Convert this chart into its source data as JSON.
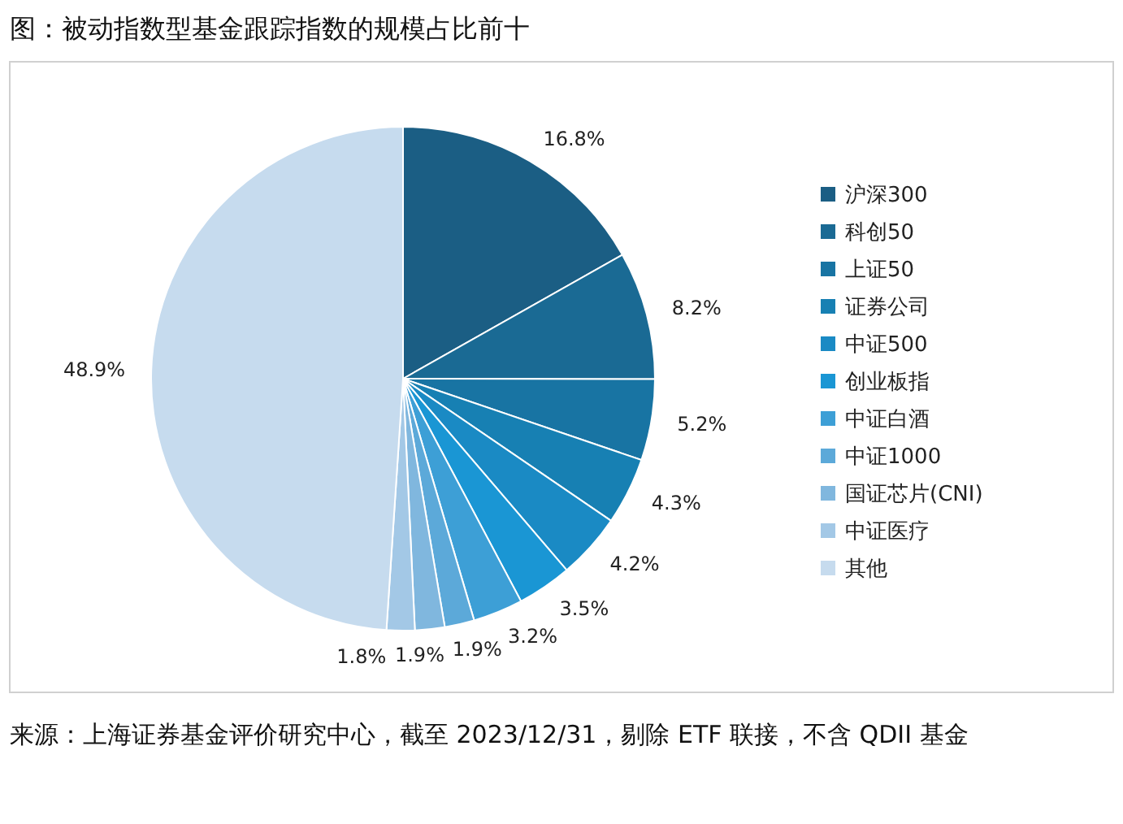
{
  "chart_data": {
    "type": "pie",
    "title": "图：被动指数型基金跟踪指数的规模占比前十",
    "categories": [
      "沪深300",
      "科创50",
      "上证50",
      "证券公司",
      "中证500",
      "创业板指",
      "中证白酒",
      "中证1000",
      "国证芯片(CNI)",
      "中证医疗",
      "其他"
    ],
    "values": [
      16.8,
      8.2,
      5.2,
      4.3,
      4.2,
      3.5,
      3.2,
      1.9,
      1.9,
      1.8,
      48.9
    ],
    "value_labels": [
      "16.8%",
      "8.2%",
      "5.2%",
      "4.3%",
      "4.2%",
      "3.5%",
      "3.2%",
      "1.9%",
      "1.9%",
      "1.8%",
      "48.9%"
    ],
    "colors": [
      "#1b5e84",
      "#1a6a94",
      "#1874a3",
      "#1780b3",
      "#1a8ac4",
      "#1a96d4",
      "#3d9fd6",
      "#5ca9d9",
      "#80b7de",
      "#a3c8e6",
      "#c6dbee"
    ],
    "legend": "right",
    "annotations": [
      "来源：上海证券基金评价研究中心，截至 2023/12/31，剔除 ETF 联接，不含 QDII 基金"
    ]
  }
}
